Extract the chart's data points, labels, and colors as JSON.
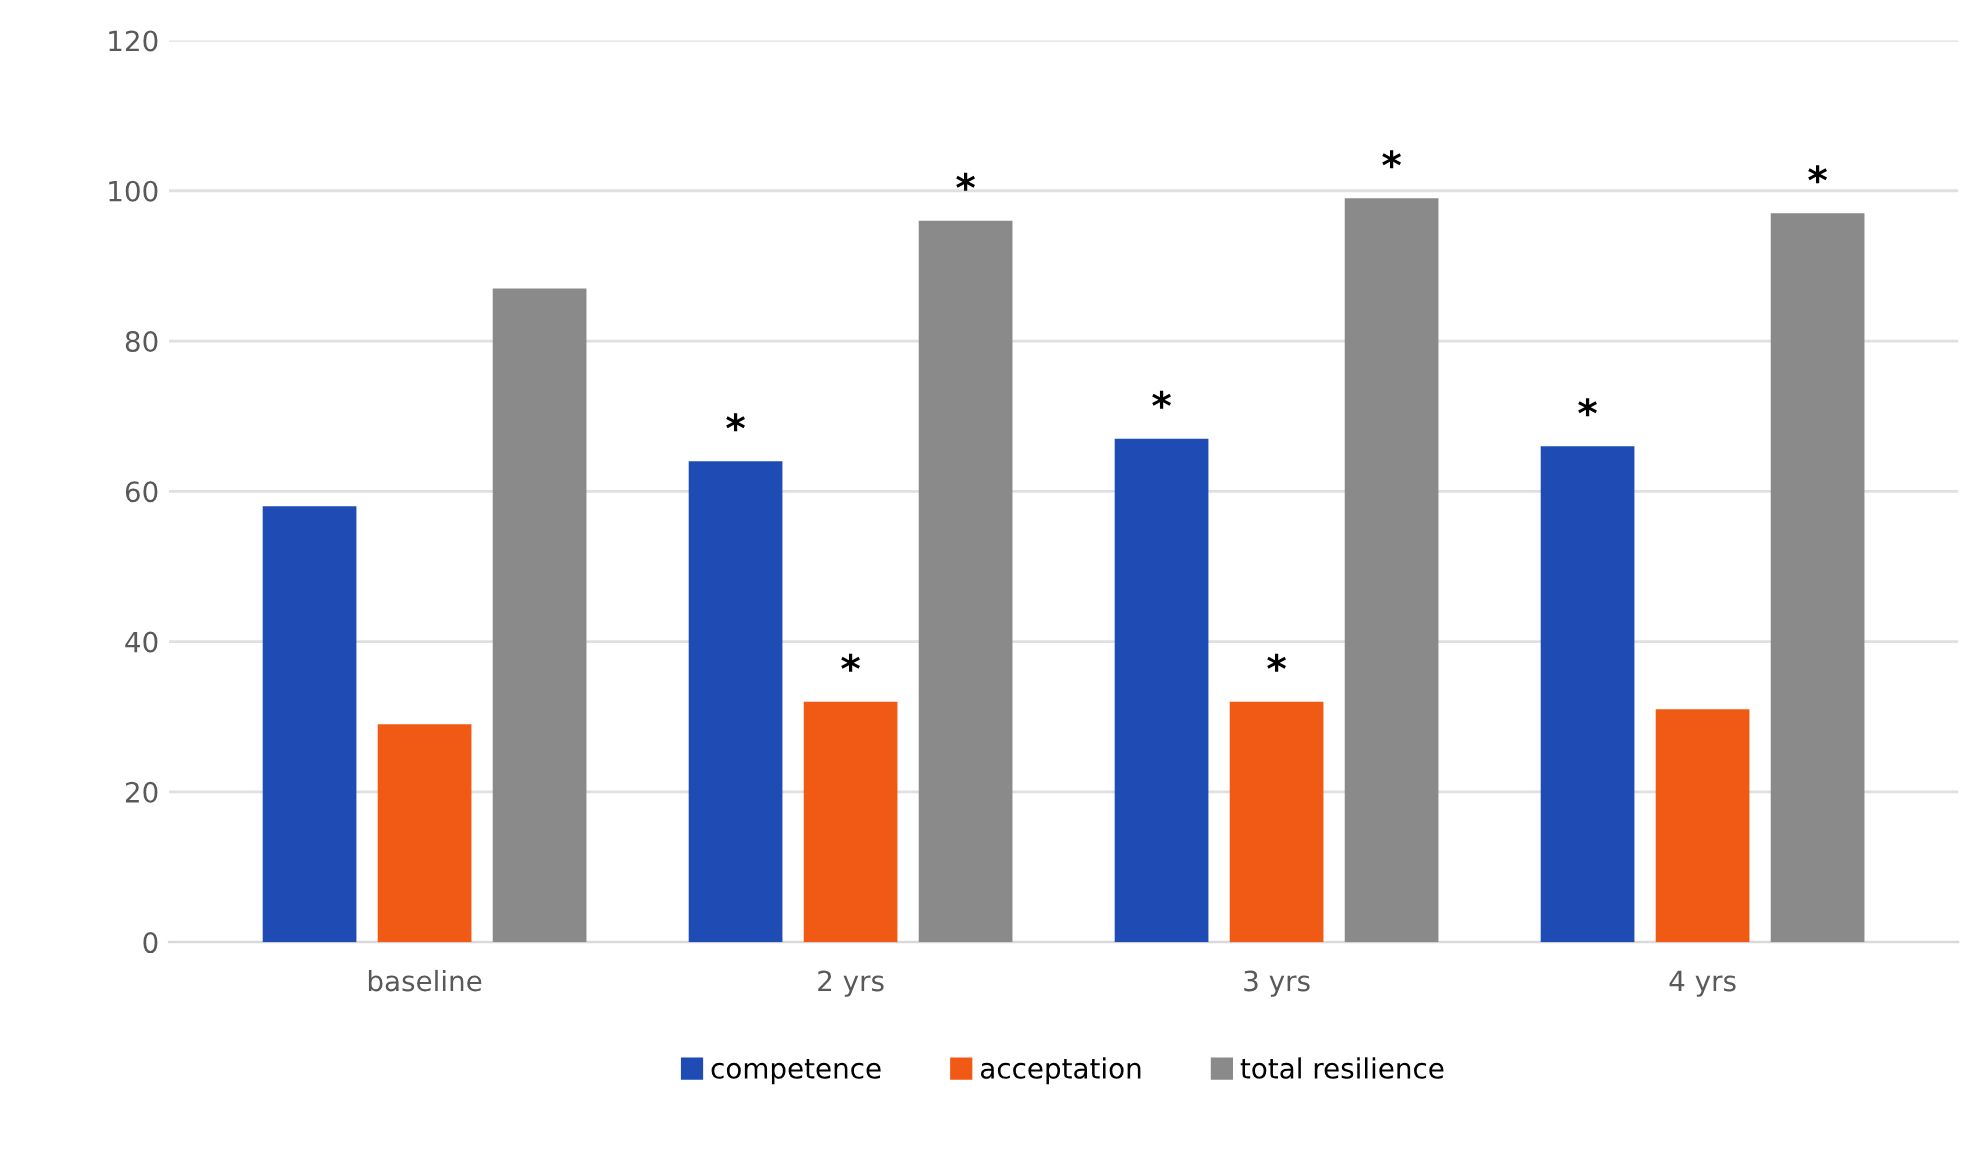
{
  "chart_data": {
    "type": "bar",
    "categories": [
      "baseline",
      "2 yrs",
      "3 yrs",
      "4 yrs"
    ],
    "series": [
      {
        "name": "competence",
        "color": "#1f4bb5",
        "values": [
          58,
          64,
          67,
          66
        ]
      },
      {
        "name": "acceptation",
        "color": "#f05a14",
        "values": [
          29,
          32,
          32,
          31
        ]
      },
      {
        "name": "total resilience",
        "color": "#8a8a8a",
        "values": [
          87,
          96,
          99,
          97
        ]
      }
    ],
    "annotations": [
      {
        "text": "*",
        "y": 64
      },
      {
        "text": "*",
        "y": 32
      },
      {
        "text": "*",
        "y": 96
      },
      {
        "text": "*",
        "y": 67
      },
      {
        "text": "*",
        "y": 32
      },
      {
        "text": "*",
        "y": 99
      },
      {
        "text": "*",
        "y": 66
      },
      {
        "text": "*",
        "y": 97
      }
    ],
    "ylim": [
      0,
      120
    ],
    "yticks": [
      0,
      20,
      40,
      60,
      80,
      100,
      120
    ],
    "grid": "y",
    "legend": "bottom"
  }
}
